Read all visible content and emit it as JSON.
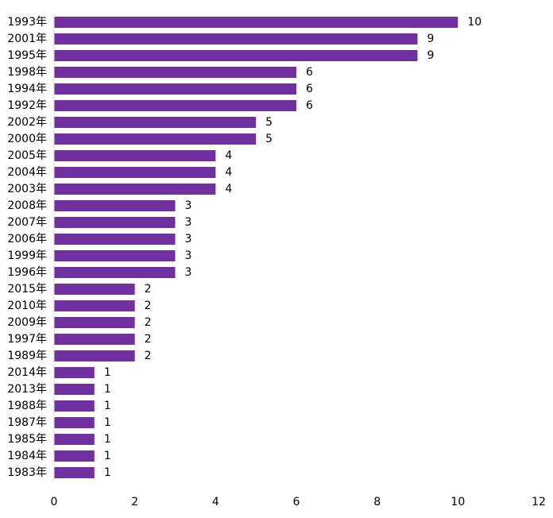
{
  "chart_data": {
    "type": "bar",
    "orientation": "horizontal",
    "title": "",
    "xlabel": "",
    "ylabel": "",
    "xlim": [
      0,
      12
    ],
    "x_ticks": [
      0,
      2,
      4,
      6,
      8,
      10,
      12
    ],
    "grid": false,
    "legend": "none",
    "bar_color": "#7030A0",
    "categories": [
      "1993年",
      "2001年",
      "1995年",
      "1998年",
      "1994年",
      "1992年",
      "2002年",
      "2000年",
      "2005年",
      "2004年",
      "2003年",
      "2008年",
      "2007年",
      "2006年",
      "1999年",
      "1996年",
      "2015年",
      "2010年",
      "2009年",
      "1997年",
      "1989年",
      "2014年",
      "2013年",
      "1988年",
      "1987年",
      "1985年",
      "1984年",
      "1983年"
    ],
    "values": [
      10,
      9,
      9,
      6,
      6,
      6,
      5,
      5,
      4,
      4,
      4,
      3,
      3,
      3,
      3,
      3,
      2,
      2,
      2,
      2,
      2,
      1,
      1,
      1,
      1,
      1,
      1,
      1
    ]
  }
}
